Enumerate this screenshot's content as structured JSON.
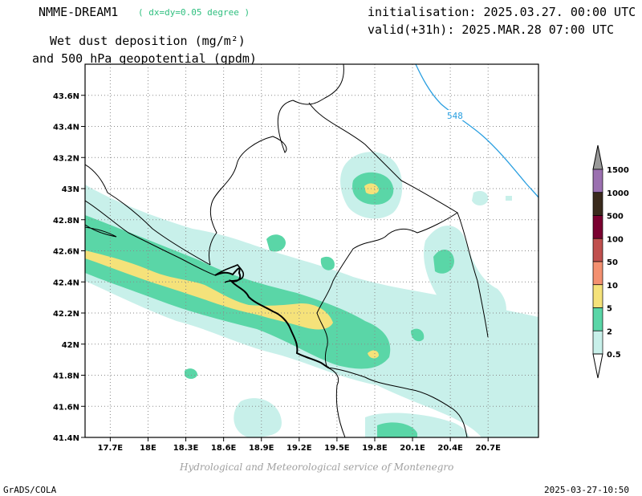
{
  "header": {
    "model": "NMME-DREAM1",
    "resolution": "( dx=dy=0.05 degree )",
    "title_line1": "Wet dust deposition (mg/m²)",
    "title_line2": "and 500 hPa geopotential (gpdm)",
    "init": "initialisation: 2025.03.27. 00:00 UTC",
    "valid": "valid(+31h): 2025.MAR.28 07:00 UTC"
  },
  "map": {
    "lat_labels": [
      "43.6N",
      "43.4N",
      "43.2N",
      "43N",
      "42.8N",
      "42.6N",
      "42.4N",
      "42.2N",
      "42N",
      "41.8N",
      "41.6N",
      "41.4N"
    ],
    "lon_labels": [
      "17.7E",
      "18E",
      "18.3E",
      "18.6E",
      "18.9E",
      "19.2E",
      "19.5E",
      "19.8E",
      "20.1E",
      "20.4E",
      "20.7E"
    ],
    "lat_range": [
      41.4,
      43.8
    ],
    "lon_range": [
      17.5,
      21.1
    ],
    "contour_label": "548",
    "contour_color": "#2a9fe0"
  },
  "legend": {
    "levels": [
      "1500",
      "1000",
      "500",
      "100",
      "50",
      "10",
      "5",
      "2",
      "0.5"
    ],
    "colors": [
      "#9b70b0",
      "#3a2a1c",
      "#7a0030",
      "#c0504e",
      "#f39070",
      "#f5e27a",
      "#5ad6a7",
      "#c8f0ea"
    ]
  },
  "footer": {
    "credit": "Hydrological and Meteorological service of Montenegro",
    "left": "GrADS/COLA",
    "right": "2025-03-27-10:50"
  }
}
